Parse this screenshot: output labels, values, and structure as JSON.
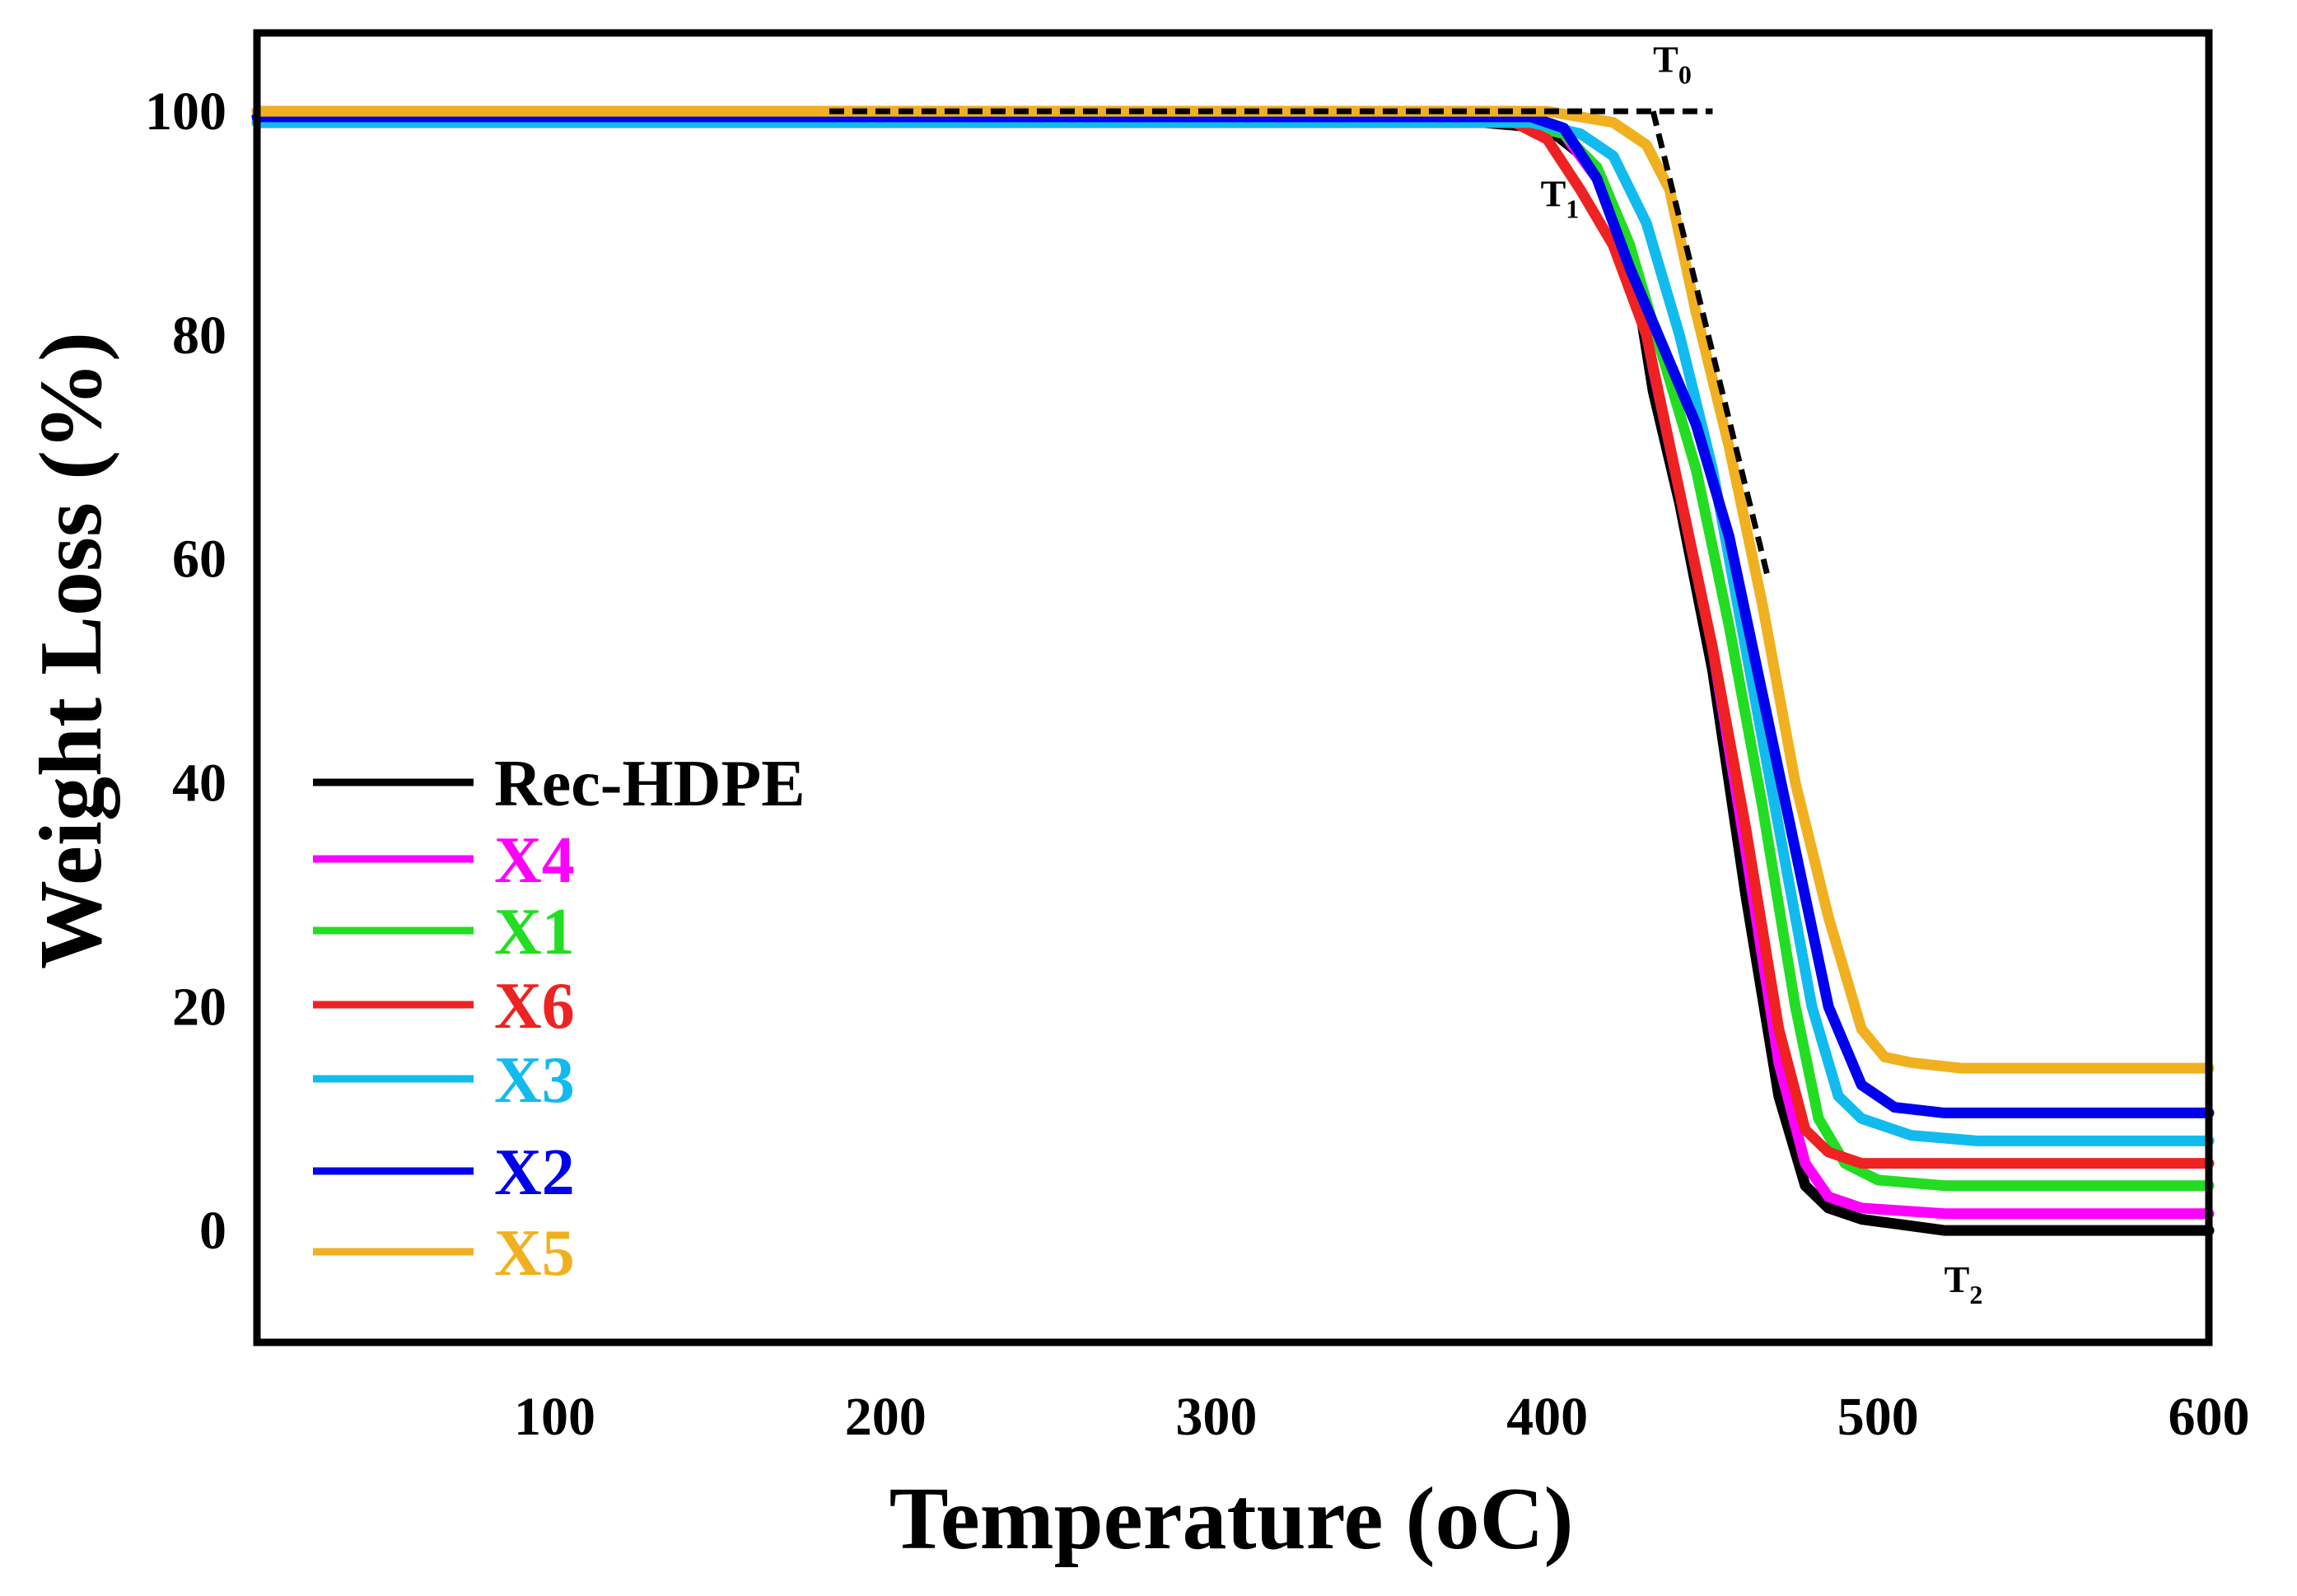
{
  "chart_data": {
    "type": "line",
    "title": "",
    "xlabel": "Temperature",
    "xlabel_unit": "(oC)",
    "ylabel": "Weight Loss (%)",
    "xlim": [
      10,
      600
    ],
    "ylim": [
      -10,
      107
    ],
    "x_ticks": [
      "100",
      "200",
      "300",
      "400",
      "500",
      "600"
    ],
    "y_ticks": [
      "0",
      "20",
      "40",
      "60",
      "80",
      "100"
    ],
    "x_tick_values": [
      100,
      200,
      300,
      400,
      500,
      600
    ],
    "y_tick_values": [
      0,
      20,
      40,
      60,
      80,
      100
    ],
    "series": [
      {
        "name": "Rec-HDPE",
        "color": "#000000",
        "x": [
          10,
          380,
          400,
          415,
          425,
          432,
          440,
          450,
          460,
          470,
          478,
          485,
          495,
          520,
          600
        ],
        "y": [
          99,
          99,
          98.5,
          95,
          88,
          75,
          65,
          50,
          30,
          12,
          4,
          2,
          1,
          0,
          0
        ]
      },
      {
        "name": "X4",
        "color": "#ff00ff",
        "x": [
          10,
          390,
          405,
          415,
          425,
          432,
          440,
          450,
          460,
          470,
          478,
          485,
          495,
          520,
          600
        ],
        "y": [
          100,
          100,
          98,
          94,
          88,
          77,
          66,
          52,
          34,
          15,
          6,
          3,
          2,
          1.5,
          1.5
        ]
      },
      {
        "name": "X1",
        "color": "#22dd22",
        "x": [
          10,
          390,
          405,
          415,
          425,
          435,
          445,
          455,
          465,
          475,
          482,
          490,
          500,
          520,
          600
        ],
        "y": [
          99,
          99,
          98,
          95,
          88,
          78,
          68,
          54,
          38,
          20,
          10,
          6,
          4.5,
          4,
          4
        ]
      },
      {
        "name": "X6",
        "color": "#ee2222",
        "x": [
          10,
          390,
          400,
          410,
          420,
          430,
          440,
          450,
          460,
          470,
          478,
          485,
          495,
          520,
          600
        ],
        "y": [
          99,
          99,
          97.5,
          93,
          88,
          80,
          66,
          52,
          36,
          18,
          9,
          7,
          6,
          6,
          6
        ]
      },
      {
        "name": "X3",
        "color": "#11bbee",
        "x": [
          10,
          395,
          410,
          420,
          430,
          440,
          450,
          460,
          470,
          480,
          488,
          495,
          510,
          530,
          600
        ],
        "y": [
          99,
          99,
          98,
          96,
          90,
          80,
          68,
          52,
          36,
          20,
          12,
          10,
          8.5,
          8,
          8
        ]
      },
      {
        "name": "X2",
        "color": "#0000ee",
        "x": [
          10,
          395,
          405,
          415,
          425,
          435,
          445,
          455,
          465,
          475,
          485,
          495,
          505,
          520,
          600
        ],
        "y": [
          99.5,
          99.5,
          98.5,
          94,
          86,
          79,
          72,
          62,
          48,
          34,
          20,
          13,
          11,
          10.5,
          10.5
        ]
      },
      {
        "name": "X5",
        "color": "#f0b020",
        "x": [
          10,
          400,
          420,
          430,
          437,
          445,
          455,
          465,
          475,
          485,
          495,
          502,
          510,
          525,
          600
        ],
        "y": [
          100,
          100,
          99,
          97,
          93,
          82,
          70,
          56,
          40,
          28,
          18,
          15.5,
          15,
          14.5,
          14.5
        ]
      }
    ],
    "tangent_lines": {
      "color": "#000000",
      "baseline": {
        "x": [
          183,
          450
        ],
        "y": [
          100,
          100
        ]
      },
      "slope": {
        "x": [
          432,
          467
        ],
        "y": [
          100,
          58
        ]
      }
    },
    "annotations": [
      {
        "text": "T",
        "sub": "0",
        "x": 432,
        "y": 103.5
      },
      {
        "text": "T",
        "sub": "1",
        "x": 398,
        "y": 91.5
      },
      {
        "text": "T",
        "sub": "2",
        "x": 520,
        "y": -5.5
      }
    ],
    "legend": {
      "position": "center-left"
    }
  }
}
